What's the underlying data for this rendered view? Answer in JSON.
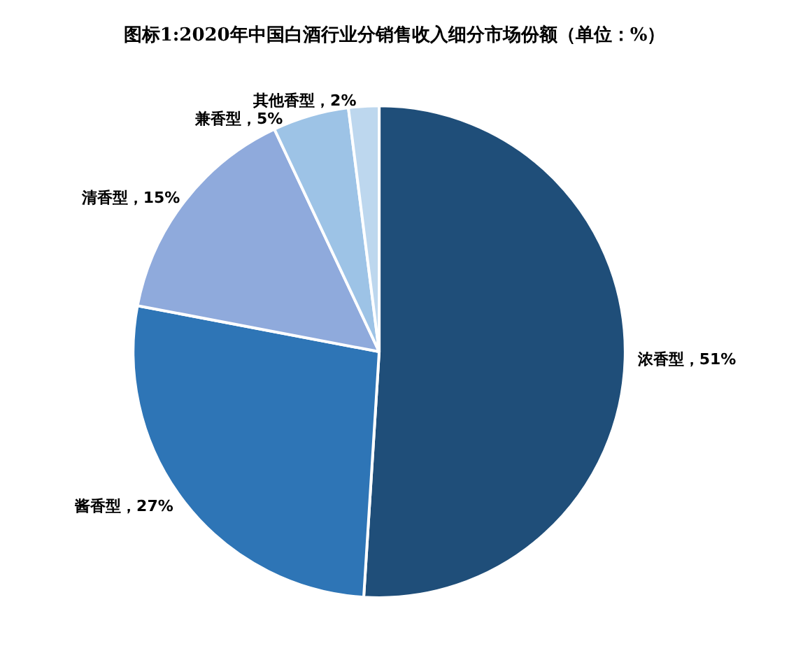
{
  "chart_data": {
    "type": "pie",
    "title": "图标1:2020年中国白酒行业分销售收入细分市场份额（单位：%）",
    "categories": [
      "浓香型",
      "酱香型",
      "清香型",
      "兼香型",
      "其他香型"
    ],
    "values": [
      51,
      27,
      15,
      5,
      2
    ],
    "colors": [
      "#1f4e79",
      "#2e75b6",
      "#8faadc",
      "#9dc3e6",
      "#bdd7ee"
    ],
    "value_labels": [
      "51%",
      "27%",
      "15%",
      "5%",
      "2%"
    ],
    "legend": false
  }
}
